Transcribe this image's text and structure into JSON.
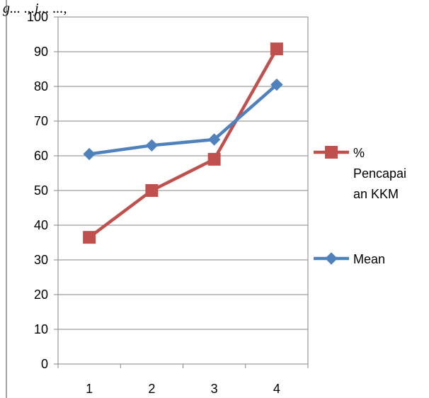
{
  "caption_fragment": "g... ...j... ...,",
  "chart_data": {
    "type": "line",
    "x": [
      1,
      2,
      3,
      4
    ],
    "categories": [
      "1",
      "2",
      "3",
      "4"
    ],
    "ylim": [
      0,
      100
    ],
    "yticks": [
      0,
      10,
      20,
      30,
      40,
      50,
      60,
      70,
      80,
      90,
      100
    ],
    "grid": true,
    "legend_position": "right",
    "series": [
      {
        "name": "% Pencapaian KKM",
        "legend_lines": [
          "%",
          "Pencapai",
          "an KKM"
        ],
        "values": [
          36.5,
          50,
          59,
          90.8
        ],
        "color": "#c0504d",
        "marker": "square"
      },
      {
        "name": "Mean",
        "legend_lines": [
          "Mean"
        ],
        "values": [
          60.5,
          63,
          64.7,
          80.5
        ],
        "color": "#4f81bd",
        "marker": "diamond"
      }
    ],
    "title": "",
    "xlabel": "",
    "ylabel": ""
  }
}
